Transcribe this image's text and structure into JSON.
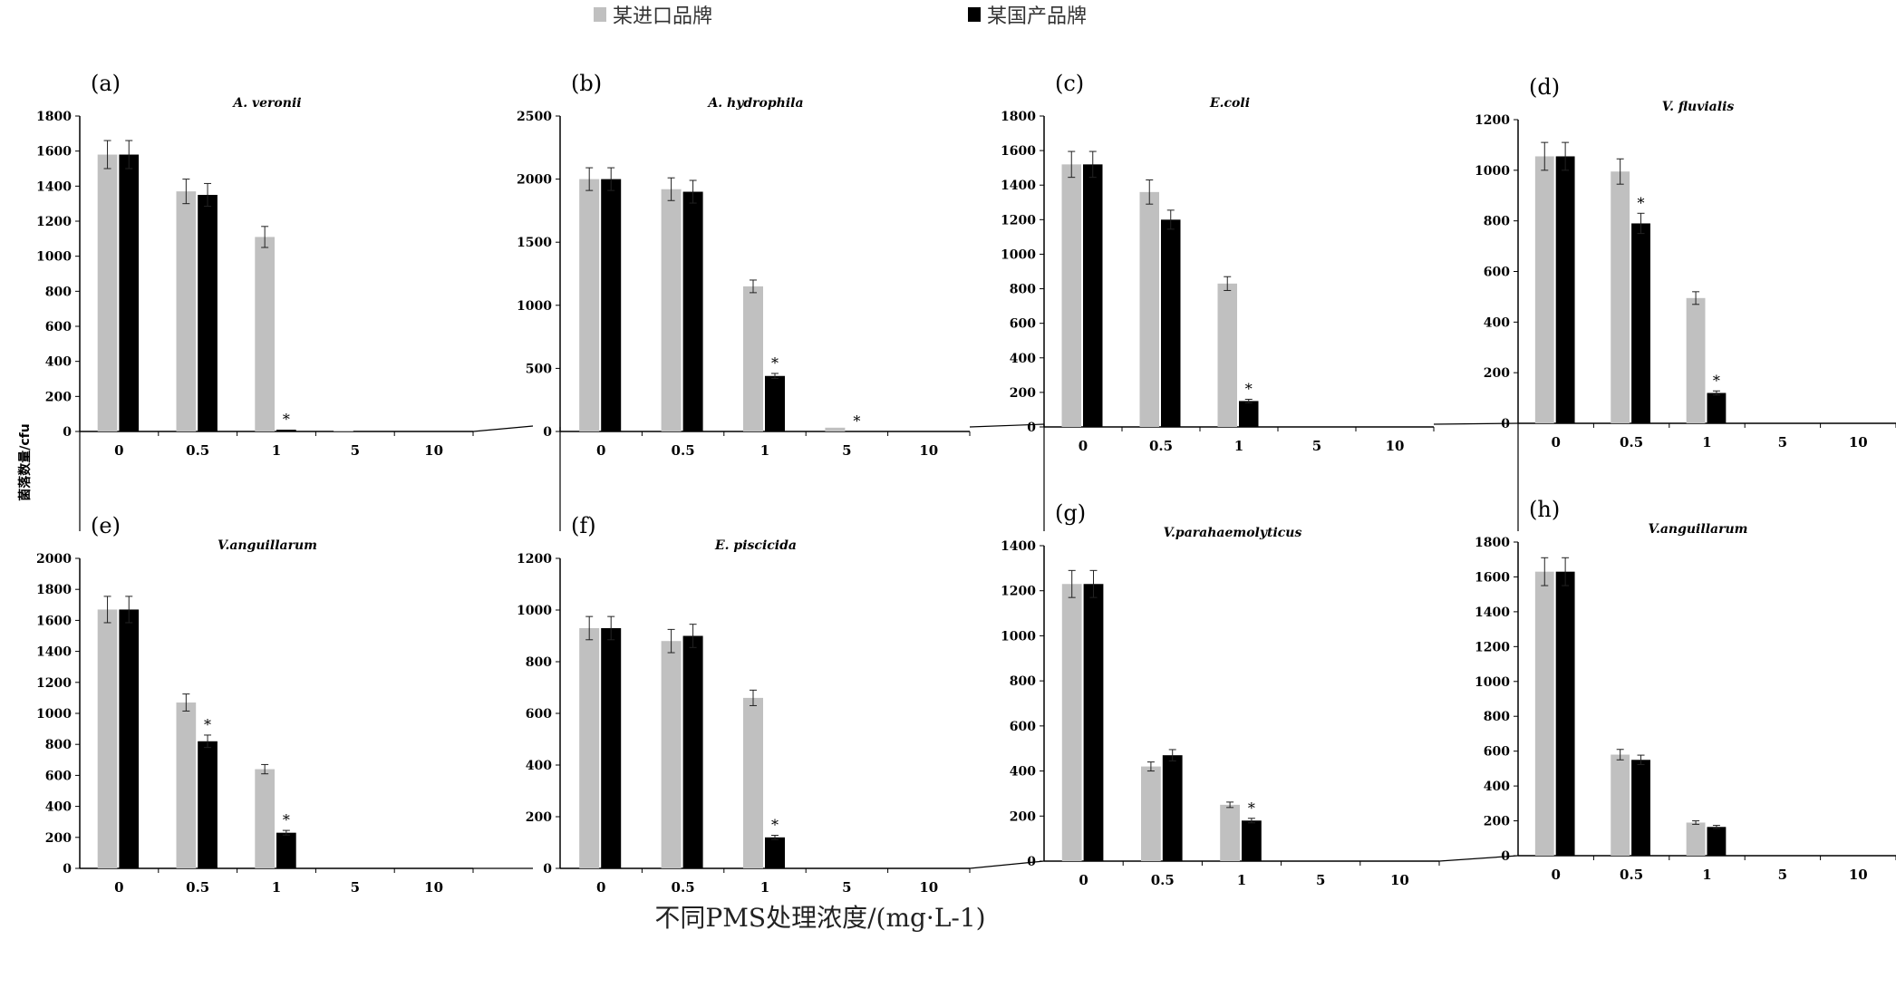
{
  "legend": {
    "items": [
      {
        "label": "某进口品牌",
        "color": "#c0c0c0"
      },
      {
        "label": "某国产品牌",
        "color": "#000000"
      }
    ]
  },
  "ylabel": "菌落数量/cfu",
  "xlabel": "不同PMS处理浓度/(mg·L-1)",
  "chart_data": [
    {
      "type": "bar",
      "panel": "(a)",
      "title": "A. veronii",
      "categories": [
        "0",
        "0.5",
        "1",
        "5",
        "10"
      ],
      "ylim": [
        0,
        1800
      ],
      "yticks": [
        0,
        200,
        400,
        600,
        800,
        1000,
        1200,
        1400,
        1600,
        1800
      ],
      "series": [
        {
          "name": "某进口品牌",
          "values": [
            1580,
            1370,
            1110,
            5,
            0
          ],
          "errors": [
            80,
            70,
            60,
            0,
            0
          ]
        },
        {
          "name": "某国产品牌",
          "values": [
            1580,
            1350,
            10,
            0,
            0
          ],
          "errors": [
            80,
            65,
            0,
            0,
            0
          ]
        }
      ],
      "significance": [
        {
          "index": 2,
          "series": 1,
          "mark": "*"
        }
      ]
    },
    {
      "type": "bar",
      "panel": "(b)",
      "title": "A. hydrophila",
      "categories": [
        "0",
        "0.5",
        "1",
        "5",
        "10"
      ],
      "ylim": [
        0,
        2500
      ],
      "yticks": [
        0,
        500,
        1000,
        1500,
        2000,
        2500
      ],
      "series": [
        {
          "name": "某进口品牌",
          "values": [
            2000,
            1920,
            1150,
            30,
            0
          ],
          "errors": [
            90,
            90,
            50,
            0,
            0
          ]
        },
        {
          "name": "某国产品牌",
          "values": [
            2000,
            1900,
            440,
            0,
            0
          ],
          "errors": [
            90,
            90,
            20,
            0,
            0
          ]
        }
      ],
      "significance": [
        {
          "index": 2,
          "series": 1,
          "mark": "*"
        },
        {
          "index": 3,
          "series": 1,
          "mark": "*"
        }
      ]
    },
    {
      "type": "bar",
      "panel": "(c)",
      "title": "E.coli",
      "categories": [
        "0",
        "0.5",
        "1",
        "5",
        "10"
      ],
      "ylim": [
        0,
        1800
      ],
      "yticks": [
        0,
        200,
        400,
        600,
        800,
        1000,
        1200,
        1400,
        1600,
        1800
      ],
      "series": [
        {
          "name": "某进口品牌",
          "values": [
            1520,
            1360,
            830,
            0,
            0
          ],
          "errors": [
            75,
            70,
            40,
            0,
            0
          ]
        },
        {
          "name": "某国产品牌",
          "values": [
            1520,
            1200,
            150,
            0,
            0
          ],
          "errors": [
            75,
            55,
            10,
            0,
            0
          ]
        }
      ],
      "significance": [
        {
          "index": 2,
          "series": 1,
          "mark": "*"
        }
      ]
    },
    {
      "type": "bar",
      "panel": "(d)",
      "title": "V. fluvialis",
      "categories": [
        "0",
        "0.5",
        "1",
        "5",
        "10"
      ],
      "ylim": [
        0,
        1200
      ],
      "yticks": [
        0,
        200,
        400,
        600,
        800,
        1000,
        1200
      ],
      "series": [
        {
          "name": "某进口品牌",
          "values": [
            1055,
            995,
            495,
            0,
            0
          ],
          "errors": [
            55,
            50,
            25,
            0,
            0
          ]
        },
        {
          "name": "某国产品牌",
          "values": [
            1055,
            790,
            120,
            0,
            0
          ],
          "errors": [
            55,
            40,
            8,
            0,
            0
          ]
        }
      ],
      "significance": [
        {
          "index": 1,
          "series": 1,
          "mark": "*"
        },
        {
          "index": 2,
          "series": 1,
          "mark": "*"
        }
      ]
    },
    {
      "type": "bar",
      "panel": "(e)",
      "title": "V.anguillarum",
      "categories": [
        "0",
        "0.5",
        "1",
        "5",
        "10"
      ],
      "ylim": [
        0,
        2000
      ],
      "yticks": [
        0,
        200,
        400,
        600,
        800,
        1000,
        1200,
        1400,
        1600,
        1800,
        2000
      ],
      "series": [
        {
          "name": "某进口品牌",
          "values": [
            1670,
            1070,
            640,
            0,
            0
          ],
          "errors": [
            85,
            55,
            30,
            0,
            0
          ]
        },
        {
          "name": "某国产品牌",
          "values": [
            1670,
            820,
            230,
            0,
            0
          ],
          "errors": [
            85,
            40,
            15,
            0,
            0
          ]
        }
      ],
      "significance": [
        {
          "index": 1,
          "series": 1,
          "mark": "*"
        },
        {
          "index": 2,
          "series": 1,
          "mark": "*"
        }
      ]
    },
    {
      "type": "bar",
      "panel": "(f)",
      "title": "E. piscicida",
      "categories": [
        "0",
        "0.5",
        "1",
        "5",
        "10"
      ],
      "ylim": [
        0,
        1200
      ],
      "yticks": [
        0,
        200,
        400,
        600,
        800,
        1000,
        1200
      ],
      "series": [
        {
          "name": "某进口品牌",
          "values": [
            930,
            880,
            660,
            0,
            0
          ],
          "errors": [
            45,
            45,
            30,
            0,
            0
          ]
        },
        {
          "name": "某国产品牌",
          "values": [
            930,
            900,
            120,
            0,
            0
          ],
          "errors": [
            45,
            45,
            8,
            0,
            0
          ]
        }
      ],
      "significance": [
        {
          "index": 2,
          "series": 1,
          "mark": "*"
        }
      ]
    },
    {
      "type": "bar",
      "panel": "(g)",
      "title": "V.parahaemolyticus",
      "categories": [
        "0",
        "0.5",
        "1",
        "5",
        "10"
      ],
      "ylim": [
        0,
        1400
      ],
      "yticks": [
        0,
        200,
        400,
        600,
        800,
        1000,
        1200,
        1400
      ],
      "series": [
        {
          "name": "某进口品牌",
          "values": [
            1230,
            420,
            250,
            0,
            0
          ],
          "errors": [
            60,
            20,
            12,
            0,
            0
          ]
        },
        {
          "name": "某国产品牌",
          "values": [
            1230,
            470,
            180,
            0,
            0
          ],
          "errors": [
            60,
            25,
            10,
            0,
            0
          ]
        }
      ],
      "significance": [
        {
          "index": 2,
          "series": 1,
          "mark": "*"
        }
      ]
    },
    {
      "type": "bar",
      "panel": "(h)",
      "title": "V.anguillarum",
      "categories": [
        "0",
        "0.5",
        "1",
        "5",
        "10"
      ],
      "ylim": [
        0,
        1800
      ],
      "yticks": [
        0,
        200,
        400,
        600,
        800,
        1000,
        1200,
        1400,
        1600,
        1800
      ],
      "series": [
        {
          "name": "某进口品牌",
          "values": [
            1630,
            580,
            190,
            0,
            0
          ],
          "errors": [
            80,
            30,
            10,
            0,
            0
          ]
        },
        {
          "name": "某国产品牌",
          "values": [
            1630,
            550,
            165,
            0,
            0
          ],
          "errors": [
            80,
            27,
            9,
            0,
            0
          ]
        }
      ],
      "significance": []
    }
  ]
}
